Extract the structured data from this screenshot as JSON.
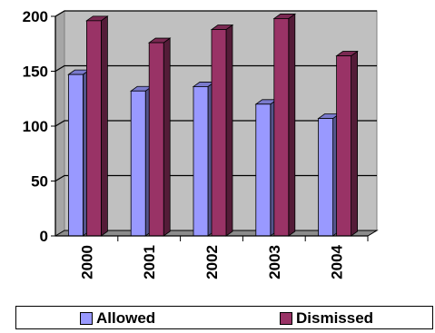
{
  "chart_data": {
    "type": "bar",
    "categories": [
      "2000",
      "2001",
      "2002",
      "2003",
      "2004"
    ],
    "series": [
      {
        "name": "Allowed",
        "values": [
          147,
          132,
          136,
          120,
          107
        ],
        "color": "#9999ff"
      },
      {
        "name": "Dismissed",
        "values": [
          196,
          176,
          188,
          198,
          164
        ],
        "color": "#993366"
      }
    ],
    "ylim": [
      0,
      200
    ],
    "yticks": [
      0,
      50,
      100,
      150,
      200
    ],
    "grid": true,
    "three_d": true,
    "plot_background": "#c0c0c0",
    "legend_position": "bottom"
  }
}
